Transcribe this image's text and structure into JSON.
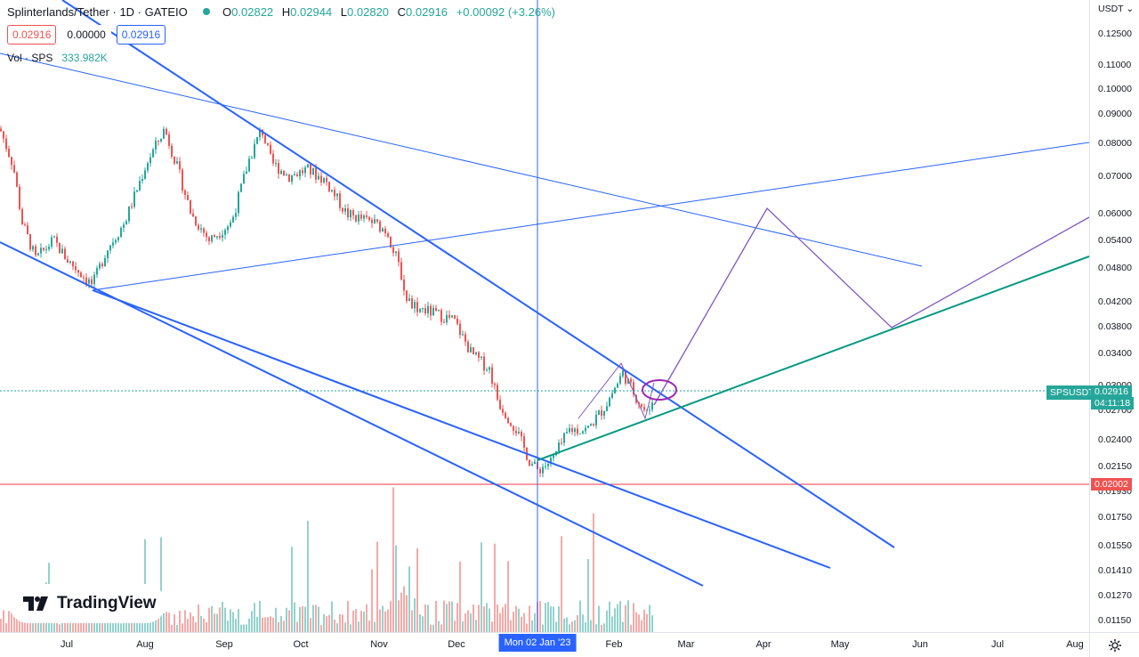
{
  "header": {
    "title": "Splinterlands/Tether · 1D · GATEIO",
    "ohlc": [
      {
        "k": "O",
        "v": "0.02822"
      },
      {
        "k": "H",
        "v": "0.02944"
      },
      {
        "k": "L",
        "v": "0.02820"
      },
      {
        "k": "C",
        "v": "0.02916"
      }
    ],
    "change": "+0.00092 (+3.26%)",
    "sell": "0.02916",
    "spread": "0.00000",
    "buy": "0.02916",
    "volume_label": "Vol · SPS",
    "volume_value": "333.982K"
  },
  "axis": {
    "currency": "USDT",
    "price_ticks": [
      "0.12500",
      "0.11000",
      "0.10000",
      "0.09000",
      "0.08000",
      "0.07000",
      "0.06000",
      "0.05400",
      "0.04800",
      "0.04200",
      "0.03800",
      "0.03400",
      "0.03000",
      "0.02700",
      "0.02400",
      "0.02150",
      "0.01930",
      "0.01750",
      "0.01550",
      "0.01410",
      "0.01270",
      "0.01150"
    ],
    "time_ticks": [
      "Jul",
      "Aug",
      "Sep",
      "Oct",
      "Nov",
      "Dec",
      "Feb",
      "Mar",
      "Apr",
      "May",
      "Jun",
      "Jul",
      "Aug"
    ],
    "crosshair_date": "Mon 02 Jan '23"
  },
  "badges": {
    "symbol": "SPSUSDT",
    "last_price": "0.02916",
    "countdown": "04:11:18",
    "hline_price": "0.02002"
  },
  "branding": {
    "logo_text": "TradingView"
  },
  "colors": {
    "up": "#26a69a",
    "down": "#ef5350",
    "trendline": "#2962ff",
    "projection": "#7e57c2",
    "support": "#089981",
    "hline": "#f23645"
  },
  "chart_data": {
    "type": "candlestick",
    "title": "Splinterlands/Tether · 1D · GATEIO",
    "scale": "log",
    "ylim": [
      0.0108,
      0.135
    ],
    "x": [
      "2022-06",
      "2022-07",
      "2022-08",
      "2022-09",
      "2022-10",
      "2022-11",
      "2022-12",
      "2023-01",
      "2023-02"
    ],
    "close": [
      0.085,
      0.046,
      0.085,
      0.085,
      0.07,
      0.056,
      0.036,
      0.022,
      0.0292
    ],
    "last": {
      "open": 0.02822,
      "high": 0.02944,
      "low": 0.0282,
      "close": 0.02916,
      "volume": "333.982K"
    },
    "horizontal_line": 0.02002
  }
}
